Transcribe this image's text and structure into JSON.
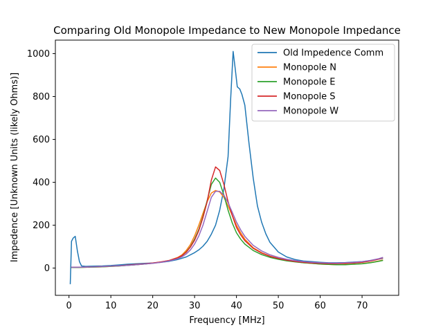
{
  "chart_data": {
    "type": "line",
    "title": "Comparing Old Monopole Impedance to New Monopole Impedance",
    "xlabel": "Frequency [MHz]",
    "ylabel": "Impedence [Unknown Units (likely Ohms)]",
    "xlim": [
      -3.25,
      78.75
    ],
    "ylim": [
      -127,
      1063
    ],
    "xticks": [
      0,
      10,
      20,
      30,
      40,
      50,
      60,
      70
    ],
    "yticks": [
      0,
      200,
      400,
      600,
      800,
      1000
    ],
    "grid": false,
    "legend_position": "top-right",
    "series": [
      {
        "name": "Old Impedence Comm",
        "color": "#1f77b4",
        "x": [
          0.3,
          0.6,
          1.0,
          1.5,
          2.0,
          2.5,
          3.0,
          4,
          6,
          8,
          10,
          12,
          14,
          16,
          18,
          20,
          22,
          24,
          26,
          28,
          30,
          31,
          32,
          33,
          34,
          35,
          36,
          37,
          38,
          38.6,
          39.2,
          39.7,
          40.2,
          40.8,
          41.3,
          42,
          43,
          44,
          45,
          46,
          47,
          48,
          50,
          52,
          54,
          56,
          58,
          60,
          62,
          64,
          66,
          68,
          70,
          72,
          74,
          75
        ],
        "y": [
          -75,
          125,
          140,
          148,
          80,
          30,
          10,
          8,
          9,
          10,
          12,
          15,
          18,
          20,
          22,
          24,
          27,
          32,
          40,
          52,
          72,
          85,
          102,
          125,
          158,
          200,
          270,
          370,
          520,
          780,
          1010,
          930,
          845,
          835,
          810,
          760,
          580,
          420,
          290,
          215,
          160,
          120,
          75,
          52,
          40,
          33,
          30,
          27,
          25,
          25,
          26,
          28,
          30,
          35,
          42,
          46
        ]
      },
      {
        "name": "Monopole N",
        "color": "#ff7f0e",
        "x": [
          0.5,
          2,
          4,
          6,
          8,
          10,
          12,
          14,
          16,
          18,
          20,
          22,
          24,
          26,
          27,
          28,
          29,
          30,
          31,
          32,
          33,
          34,
          35,
          36,
          37,
          38,
          39,
          40,
          41,
          42,
          44,
          46,
          48,
          50,
          52,
          54,
          56,
          58,
          60,
          62,
          64,
          66,
          68,
          70,
          72,
          74,
          75
        ],
        "y": [
          3,
          3,
          4,
          5,
          6,
          8,
          10,
          13,
          16,
          19,
          23,
          28,
          36,
          50,
          62,
          82,
          110,
          150,
          200,
          255,
          310,
          350,
          362,
          355,
          330,
          290,
          245,
          200,
          165,
          135,
          95,
          72,
          56,
          45,
          36,
          30,
          25,
          22,
          19,
          17,
          16,
          17,
          18,
          21,
          26,
          33,
          38
        ]
      },
      {
        "name": "Monopole E",
        "color": "#2ca02c",
        "x": [
          0.5,
          2,
          4,
          6,
          8,
          10,
          12,
          14,
          16,
          18,
          20,
          22,
          24,
          26,
          27,
          28,
          29,
          30,
          31,
          32,
          33,
          34,
          35,
          36,
          37,
          38,
          39,
          40,
          41,
          42,
          44,
          46,
          48,
          50,
          52,
          54,
          56,
          58,
          60,
          62,
          64,
          66,
          68,
          70,
          72,
          74,
          75
        ],
        "y": [
          3,
          3,
          4,
          5,
          6,
          8,
          10,
          13,
          16,
          19,
          23,
          28,
          35,
          47,
          58,
          75,
          100,
          135,
          180,
          240,
          315,
          390,
          420,
          400,
          340,
          270,
          210,
          165,
          135,
          112,
          82,
          63,
          50,
          41,
          34,
          29,
          25,
          22,
          19,
          17,
          16,
          16,
          18,
          20,
          25,
          32,
          36
        ]
      },
      {
        "name": "Monopole S",
        "color": "#d62728",
        "x": [
          0.5,
          2,
          4,
          6,
          8,
          10,
          12,
          14,
          16,
          18,
          20,
          22,
          24,
          26,
          27,
          28,
          29,
          30,
          31,
          32,
          33,
          34,
          35,
          36,
          37,
          38,
          39,
          40,
          41,
          42,
          44,
          46,
          48,
          50,
          52,
          54,
          56,
          58,
          60,
          62,
          64,
          66,
          68,
          70,
          72,
          74,
          75
        ],
        "y": [
          4,
          4,
          5,
          6,
          7,
          9,
          11,
          14,
          17,
          20,
          24,
          29,
          36,
          48,
          58,
          74,
          98,
          130,
          175,
          235,
          310,
          410,
          472,
          455,
          390,
          310,
          245,
          190,
          155,
          128,
          92,
          70,
          55,
          45,
          37,
          31,
          27,
          24,
          22,
          21,
          21,
          22,
          24,
          27,
          33,
          42,
          48
        ]
      },
      {
        "name": "Monopole W",
        "color": "#9467bd",
        "x": [
          0.5,
          2,
          4,
          6,
          8,
          10,
          12,
          14,
          16,
          18,
          20,
          22,
          24,
          26,
          27,
          28,
          29,
          30,
          31,
          32,
          33,
          34,
          35,
          36,
          37,
          38,
          39,
          40,
          41,
          42,
          44,
          46,
          48,
          50,
          52,
          54,
          56,
          58,
          60,
          62,
          64,
          66,
          68,
          70,
          72,
          74,
          75
        ],
        "y": [
          4,
          4,
          5,
          6,
          7,
          9,
          11,
          13,
          16,
          19,
          22,
          27,
          34,
          44,
          53,
          66,
          85,
          112,
          150,
          200,
          265,
          330,
          358,
          358,
          340,
          305,
          260,
          215,
          178,
          148,
          106,
          80,
          62,
          50,
          41,
          35,
          30,
          27,
          25,
          24,
          24,
          25,
          27,
          30,
          36,
          44,
          50
        ]
      }
    ]
  }
}
